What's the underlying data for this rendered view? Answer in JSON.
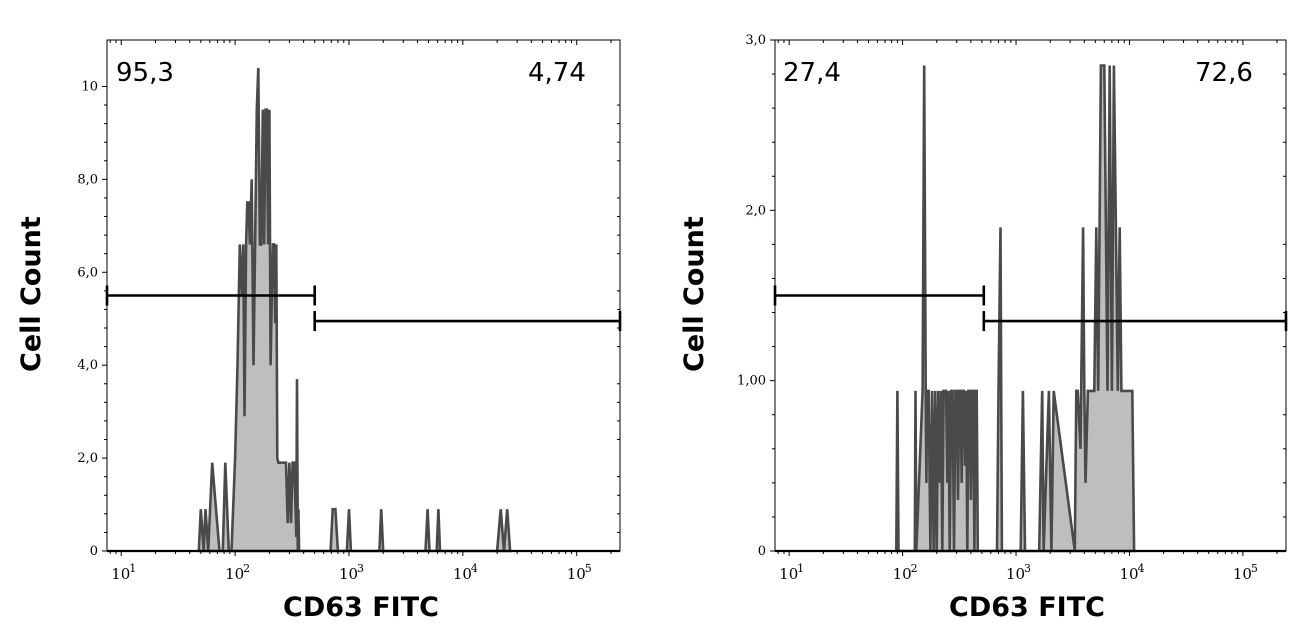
{
  "chart_data": [
    {
      "type": "histogram",
      "xlabel": "CD63 FITC",
      "ylabel": "Cell Count",
      "x_scale": "log",
      "x_ticks": [
        {
          "value": 10,
          "label": "10",
          "exp": "1"
        },
        {
          "value": 100,
          "label": "10",
          "exp": "2"
        },
        {
          "value": 1000,
          "label": "10",
          "exp": "3"
        },
        {
          "value": 10000,
          "label": "10",
          "exp": "4"
        },
        {
          "value": 100000,
          "label": "10",
          "exp": "5"
        }
      ],
      "xlim": [
        7.5,
        240000
      ],
      "ylim": [
        0,
        11
      ],
      "y_ticks": [
        {
          "value": 0,
          "label": "0"
        },
        {
          "value": 2,
          "label": "2,0"
        },
        {
          "value": 4,
          "label": "4,0"
        },
        {
          "value": 6,
          "label": "6,0"
        },
        {
          "value": 8,
          "label": "8,0"
        },
        {
          "value": 10,
          "label": "10"
        }
      ],
      "gates": [
        {
          "x_from": 7.5,
          "x_to": 500,
          "y": 5.5,
          "percent": "95,3"
        },
        {
          "x_from": 500,
          "x_to": 240000,
          "y": 4.95,
          "percent": "4,74"
        }
      ],
      "series": [
        {
          "x": [
            48,
            50,
            53,
            55,
            58,
            63,
            68,
            73,
            78,
            82,
            88,
            93,
            100,
            105,
            110,
            115,
            118,
            121,
            125,
            128,
            131,
            135,
            140,
            145,
            150,
            155,
            160,
            165,
            170,
            175,
            180,
            185,
            190,
            195,
            200,
            205,
            210,
            215,
            220,
            225,
            230,
            235,
            240,
            245,
            250,
            255,
            262,
            270,
            280,
            290,
            300,
            310,
            320,
            330,
            340,
            345,
            350,
            355,
            360,
            365,
            370,
            690,
            720,
            760,
            800,
            960,
            1000,
            1040,
            1850,
            1920,
            2000,
            4700,
            4900,
            5100,
            5900,
            6100,
            6300,
            20000,
            21500,
            23000,
            24500,
            26000
          ],
          "y": [
            0,
            0.9,
            0,
            0.9,
            0,
            1.9,
            0.9,
            0,
            0,
            1.9,
            0,
            0,
            2,
            4,
            6.6,
            5.5,
            6.6,
            2.9,
            6.6,
            7.5,
            7.5,
            6.6,
            8,
            4,
            6.6,
            9.5,
            10.4,
            6.6,
            6.6,
            9.5,
            6.6,
            9.5,
            9.5,
            6.6,
            9.5,
            4,
            5.5,
            6.6,
            6.6,
            4.9,
            6.6,
            2,
            1.9,
            1.9,
            1.9,
            1.9,
            1.9,
            1.9,
            1.9,
            0.6,
            1.9,
            0.6,
            1.9,
            1.9,
            0.9,
            0.3,
            3.7,
            0,
            0.9,
            0,
            0,
            0,
            0.9,
            0.9,
            0,
            0,
            0.9,
            0,
            0,
            0.9,
            0,
            0,
            0.9,
            0,
            0,
            0.9,
            0,
            0,
            0.9,
            0,
            0.9,
            0
          ]
        }
      ]
    },
    {
      "type": "histogram",
      "xlabel": "CD63 FITC",
      "ylabel": "Cell Count",
      "x_scale": "log",
      "x_ticks": [
        {
          "value": 10,
          "label": "10",
          "exp": "1"
        },
        {
          "value": 100,
          "label": "10",
          "exp": "2"
        },
        {
          "value": 1000,
          "label": "10",
          "exp": "3"
        },
        {
          "value": 10000,
          "label": "10",
          "exp": "4"
        },
        {
          "value": 100000,
          "label": "10",
          "exp": "5"
        }
      ],
      "xlim": [
        7.5,
        240000
      ],
      "ylim": [
        0,
        3
      ],
      "y_ticks": [
        {
          "value": 0,
          "label": "0"
        },
        {
          "value": 1,
          "label": "1,00"
        },
        {
          "value": 2,
          "label": "2,0"
        },
        {
          "value": 3,
          "label": "3,0"
        }
      ],
      "gates": [
        {
          "x_from": 7.5,
          "x_to": 520,
          "y": 1.5,
          "percent": "27,4"
        },
        {
          "x_from": 520,
          "x_to": 240000,
          "y": 1.35,
          "percent": "72,6"
        }
      ],
      "series": [
        {
          "x": [
            88,
            90,
            92,
            128,
            130,
            132,
            150,
            155,
            160,
            162,
            164,
            170,
            176,
            182,
            188,
            194,
            200,
            206,
            212,
            218,
            224,
            230,
            236,
            242,
            248,
            254,
            260,
            268,
            276,
            284,
            292,
            300,
            308,
            316,
            324,
            332,
            340,
            348,
            356,
            364,
            372,
            380,
            390,
            400,
            410,
            420,
            430,
            440,
            450,
            460,
            680,
            700,
            730,
            750,
            770,
            1100,
            1150,
            1200,
            1600,
            1700,
            1750,
            1950,
            2050,
            2150,
            3300,
            3400,
            3500,
            3700,
            3900,
            4000,
            4100,
            4300,
            4600,
            4900,
            5100,
            5300,
            5600,
            5800,
            6000,
            6200,
            6400,
            6700,
            7000,
            7300,
            7600,
            7900,
            8200,
            8500,
            8800,
            9100,
            9500,
            9800,
            10200,
            10600,
            11000,
            11500
          ],
          "y": [
            0,
            0.94,
            0,
            0,
            0.94,
            0,
            0.94,
            2.85,
            0.94,
            0.4,
            0.94,
            0.94,
            0,
            0.94,
            0,
            0.94,
            0,
            0.94,
            0.4,
            0.94,
            0,
            0.94,
            0.94,
            0.94,
            0.4,
            0.94,
            0,
            0.94,
            0.94,
            0,
            0.94,
            0.94,
            0.3,
            0.94,
            0.94,
            0.4,
            0.94,
            0.94,
            0.5,
            0.94,
            0,
            0.94,
            0.94,
            0.3,
            0.94,
            0.94,
            0,
            0.94,
            0.94,
            0,
            0,
            0.94,
            1.9,
            0,
            0,
            0,
            0.94,
            0,
            0,
            0.94,
            0,
            0.94,
            0,
            0.94,
            0,
            0.94,
            0.94,
            0.6,
            1.9,
            0.94,
            0.4,
            0.94,
            0.94,
            0.94,
            1.9,
            0.94,
            2.85,
            2.85,
            2.85,
            1.9,
            0.94,
            2.85,
            0.94,
            2.85,
            1.9,
            0.94,
            1.9,
            0.94,
            0.94,
            0.94,
            0.94,
            0.94,
            0.94,
            0.94,
            0,
            0
          ]
        }
      ]
    }
  ],
  "colors": {
    "fill": "#bebebe",
    "outline": "#4a4a4a",
    "axis": "#000000",
    "gate": "#000000"
  }
}
